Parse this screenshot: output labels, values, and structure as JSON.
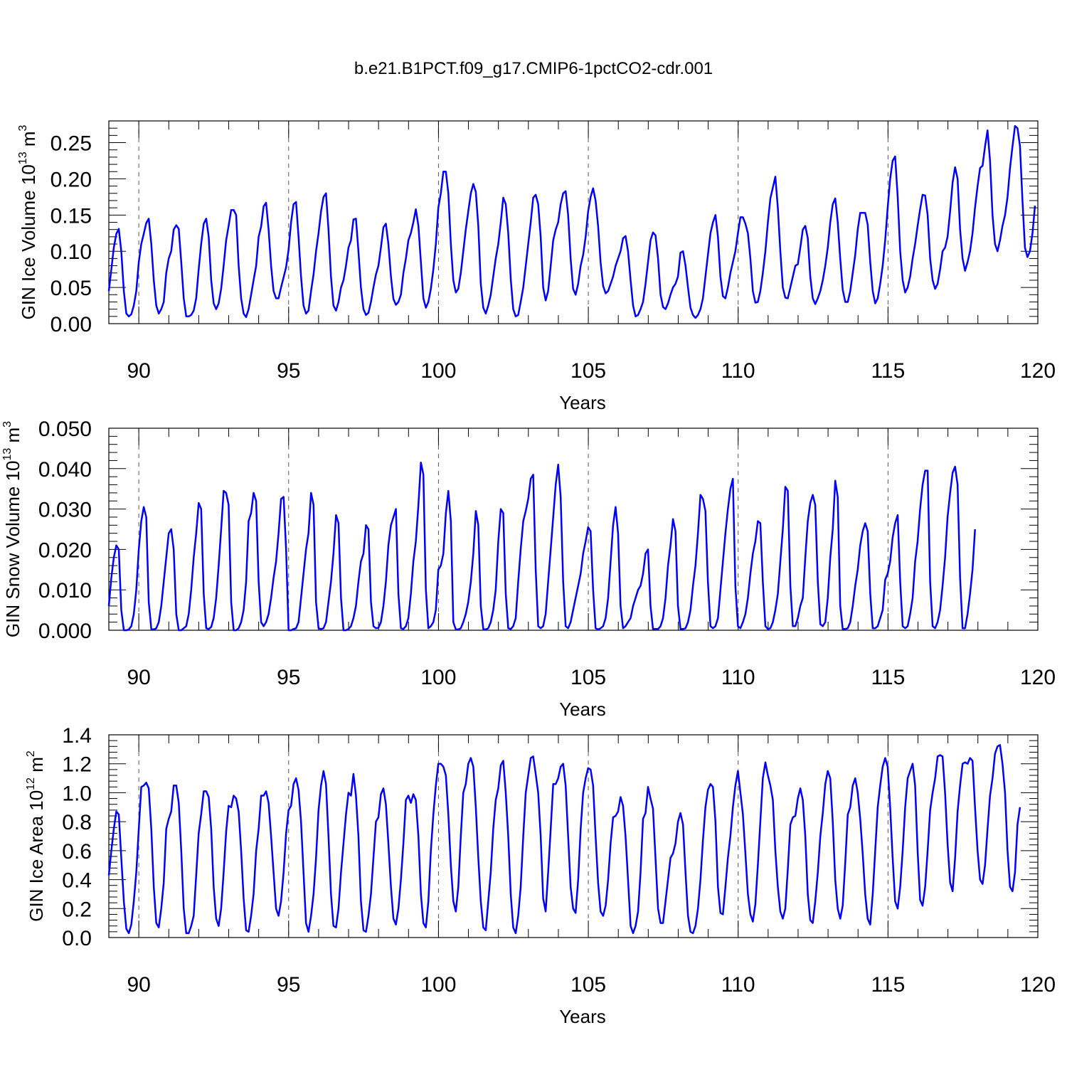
{
  "title": "b.e21.B1PCT.f09_g17.CMIP6-1pctCO2-cdr.001",
  "colors": {
    "line": "#0000ff",
    "axes": "#000000",
    "grid": "#555555"
  },
  "chart_data": [
    {
      "type": "line",
      "ylabel": "GIN Ice Volume 10",
      "ylabel_exp": "13",
      "ylabel_unit": " m",
      "ylabel_unit_exp": "3",
      "xlabel": "Years",
      "xlim": [
        89,
        120
      ],
      "ylim": [
        0,
        0.28
      ],
      "xticks": [
        90,
        95,
        100,
        105,
        110,
        115,
        120
      ],
      "xtick_labels": [
        "90",
        "95",
        "100",
        "105",
        "110",
        "115",
        "120"
      ],
      "yticks": [
        0,
        0.05,
        0.1,
        0.15,
        0.2,
        0.25
      ],
      "ytick_labels": [
        "0.00",
        "0.05",
        "0.10",
        "0.15",
        "0.20",
        "0.25"
      ],
      "grid": "vertical dashed at major x ticks",
      "x_start": 89.0,
      "x_step": 0.0833,
      "values": [
        0.045,
        0.075,
        0.105,
        0.124,
        0.131,
        0.1,
        0.045,
        0.014,
        0.01,
        0.013,
        0.025,
        0.045,
        0.085,
        0.11,
        0.124,
        0.139,
        0.145,
        0.11,
        0.06,
        0.025,
        0.014,
        0.02,
        0.03,
        0.07,
        0.09,
        0.1,
        0.13,
        0.136,
        0.131,
        0.085,
        0.035,
        0.01,
        0.01,
        0.012,
        0.018,
        0.035,
        0.075,
        0.11,
        0.138,
        0.145,
        0.12,
        0.06,
        0.028,
        0.02,
        0.028,
        0.048,
        0.08,
        0.115,
        0.135,
        0.157,
        0.157,
        0.15,
        0.08,
        0.035,
        0.014,
        0.009,
        0.02,
        0.04,
        0.06,
        0.08,
        0.12,
        0.134,
        0.162,
        0.167,
        0.13,
        0.08,
        0.045,
        0.035,
        0.035,
        0.05,
        0.064,
        0.078,
        0.102,
        0.14,
        0.165,
        0.168,
        0.12,
        0.065,
        0.025,
        0.014,
        0.018,
        0.045,
        0.068,
        0.1,
        0.125,
        0.155,
        0.175,
        0.18,
        0.13,
        0.065,
        0.025,
        0.018,
        0.03,
        0.05,
        0.06,
        0.08,
        0.105,
        0.115,
        0.144,
        0.145,
        0.1,
        0.05,
        0.02,
        0.012,
        0.015,
        0.03,
        0.05,
        0.068,
        0.08,
        0.105,
        0.133,
        0.138,
        0.11,
        0.065,
        0.034,
        0.026,
        0.03,
        0.04,
        0.07,
        0.09,
        0.115,
        0.125,
        0.14,
        0.158,
        0.135,
        0.085,
        0.035,
        0.022,
        0.03,
        0.048,
        0.075,
        0.11,
        0.16,
        0.18,
        0.21,
        0.21,
        0.18,
        0.11,
        0.06,
        0.043,
        0.048,
        0.07,
        0.1,
        0.13,
        0.155,
        0.18,
        0.193,
        0.182,
        0.135,
        0.055,
        0.022,
        0.014,
        0.025,
        0.04,
        0.065,
        0.09,
        0.11,
        0.14,
        0.174,
        0.165,
        0.125,
        0.062,
        0.02,
        0.01,
        0.012,
        0.03,
        0.05,
        0.08,
        0.11,
        0.14,
        0.174,
        0.178,
        0.165,
        0.12,
        0.05,
        0.032,
        0.045,
        0.08,
        0.115,
        0.13,
        0.14,
        0.165,
        0.18,
        0.183,
        0.15,
        0.09,
        0.048,
        0.04,
        0.055,
        0.08,
        0.095,
        0.12,
        0.155,
        0.175,
        0.187,
        0.17,
        0.135,
        0.085,
        0.052,
        0.042,
        0.045,
        0.055,
        0.065,
        0.08,
        0.09,
        0.1,
        0.118,
        0.121,
        0.1,
        0.06,
        0.025,
        0.01,
        0.012,
        0.02,
        0.03,
        0.055,
        0.085,
        0.115,
        0.126,
        0.122,
        0.09,
        0.04,
        0.023,
        0.02,
        0.028,
        0.04,
        0.05,
        0.055,
        0.065,
        0.098,
        0.1,
        0.08,
        0.05,
        0.022,
        0.012,
        0.008,
        0.012,
        0.02,
        0.035,
        0.065,
        0.095,
        0.125,
        0.14,
        0.15,
        0.12,
        0.065,
        0.038,
        0.035,
        0.05,
        0.07,
        0.085,
        0.1,
        0.125,
        0.147,
        0.147,
        0.138,
        0.125,
        0.09,
        0.045,
        0.029,
        0.03,
        0.045,
        0.07,
        0.1,
        0.14,
        0.173,
        0.188,
        0.203,
        0.16,
        0.1,
        0.05,
        0.036,
        0.035,
        0.05,
        0.065,
        0.08,
        0.082,
        0.105,
        0.13,
        0.135,
        0.118,
        0.065,
        0.035,
        0.027,
        0.035,
        0.045,
        0.06,
        0.08,
        0.105,
        0.14,
        0.165,
        0.173,
        0.14,
        0.09,
        0.047,
        0.03,
        0.03,
        0.045,
        0.07,
        0.095,
        0.13,
        0.153,
        0.153,
        0.153,
        0.137,
        0.085,
        0.045,
        0.028,
        0.035,
        0.055,
        0.08,
        0.115,
        0.16,
        0.2,
        0.225,
        0.231,
        0.175,
        0.1,
        0.06,
        0.043,
        0.05,
        0.065,
        0.09,
        0.11,
        0.135,
        0.158,
        0.178,
        0.177,
        0.15,
        0.09,
        0.06,
        0.048,
        0.055,
        0.075,
        0.1,
        0.105,
        0.12,
        0.155,
        0.195,
        0.216,
        0.2,
        0.13,
        0.09,
        0.073,
        0.085,
        0.1,
        0.125,
        0.16,
        0.19,
        0.215,
        0.218,
        0.245,
        0.267,
        0.225,
        0.15,
        0.11,
        0.1,
        0.115,
        0.135,
        0.15,
        0.175,
        0.215,
        0.245,
        0.273,
        0.27,
        0.245,
        0.17,
        0.105,
        0.092,
        0.1,
        0.125,
        0.163
      ]
    },
    {
      "type": "line",
      "ylabel": "GIN Snow Volume 10",
      "ylabel_exp": "13",
      "ylabel_unit": " m",
      "ylabel_unit_exp": "3",
      "xlabel": "Years",
      "xlim": [
        89,
        120
      ],
      "ylim": [
        0,
        0.05
      ],
      "xticks": [
        90,
        95,
        100,
        105,
        110,
        115,
        120
      ],
      "xtick_labels": [
        "90",
        "95",
        "100",
        "105",
        "110",
        "115",
        "120"
      ],
      "yticks": [
        0,
        0.01,
        0.02,
        0.03,
        0.04,
        0.05
      ],
      "ytick_labels": [
        "0.000",
        "0.010",
        "0.020",
        "0.030",
        "0.040",
        "0.050"
      ],
      "grid": "vertical dashed at major x ticks",
      "x_start": 89.0,
      "x_step": 0.0833,
      "values": [
        0.006,
        0.013,
        0.018,
        0.021,
        0.02,
        0.005,
        0.0,
        0.0,
        0.0002,
        0.001,
        0.004,
        0.01,
        0.02,
        0.027,
        0.0305,
        0.028,
        0.007,
        0.0003,
        0.0002,
        0.0005,
        0.002,
        0.006,
        0.012,
        0.018,
        0.024,
        0.025,
        0.02,
        0.004,
        0.0,
        0.0,
        0.0005,
        0.001,
        0.004,
        0.01,
        0.018,
        0.024,
        0.0315,
        0.03,
        0.009,
        0.0005,
        0.0003,
        0.0008,
        0.003,
        0.008,
        0.016,
        0.025,
        0.0345,
        0.034,
        0.031,
        0.007,
        0.0,
        0.0,
        0.0005,
        0.002,
        0.005,
        0.012,
        0.027,
        0.029,
        0.034,
        0.032,
        0.012,
        0.002,
        0.001,
        0.002,
        0.004,
        0.008,
        0.013,
        0.017,
        0.024,
        0.0325,
        0.033,
        0.02,
        0.0,
        0.0,
        0.0003,
        0.0005,
        0.002,
        0.008,
        0.014,
        0.02,
        0.024,
        0.034,
        0.031,
        0.007,
        0.0005,
        0.0003,
        0.0005,
        0.002,
        0.007,
        0.012,
        0.019,
        0.0285,
        0.0265,
        0.008,
        0.0,
        0.0,
        0.0003,
        0.001,
        0.003,
        0.006,
        0.012,
        0.017,
        0.019,
        0.026,
        0.025,
        0.007,
        0.001,
        0.0005,
        0.0006,
        0.002,
        0.006,
        0.012,
        0.021,
        0.026,
        0.028,
        0.03,
        0.009,
        0.0005,
        0.0003,
        0.001,
        0.003,
        0.009,
        0.017,
        0.022,
        0.031,
        0.0415,
        0.0385,
        0.01,
        0.0005,
        0.001,
        0.002,
        0.005,
        0.015,
        0.016,
        0.019,
        0.029,
        0.0345,
        0.027,
        0.002,
        0.0002,
        0.0002,
        0.0005,
        0.002,
        0.004,
        0.007,
        0.012,
        0.019,
        0.0295,
        0.026,
        0.006,
        0.0003,
        0.0002,
        0.0005,
        0.002,
        0.005,
        0.01,
        0.022,
        0.03,
        0.029,
        0.009,
        0.0005,
        0.0003,
        0.001,
        0.003,
        0.012,
        0.02,
        0.027,
        0.0295,
        0.0325,
        0.0375,
        0.0385,
        0.015,
        0.001,
        0.0005,
        0.001,
        0.004,
        0.012,
        0.02,
        0.028,
        0.036,
        0.041,
        0.033,
        0.012,
        0.001,
        0.0005,
        0.002,
        0.005,
        0.008,
        0.011,
        0.014,
        0.019,
        0.022,
        0.0255,
        0.0245,
        0.01,
        0.0005,
        0.0002,
        0.0005,
        0.001,
        0.003,
        0.008,
        0.017,
        0.026,
        0.0305,
        0.024,
        0.006,
        0.0005,
        0.001,
        0.002,
        0.003,
        0.006,
        0.008,
        0.01,
        0.011,
        0.014,
        0.019,
        0.02,
        0.006,
        0.0003,
        0.0003,
        0.0003,
        0.001,
        0.003,
        0.008,
        0.016,
        0.021,
        0.0275,
        0.0245,
        0.006,
        0.0003,
        0.0003,
        0.0005,
        0.002,
        0.005,
        0.011,
        0.016,
        0.024,
        0.0335,
        0.0325,
        0.0295,
        0.012,
        0.001,
        0.0005,
        0.001,
        0.003,
        0.01,
        0.017,
        0.024,
        0.03,
        0.035,
        0.0375,
        0.011,
        0.001,
        0.0005,
        0.002,
        0.004,
        0.008,
        0.014,
        0.019,
        0.022,
        0.027,
        0.0265,
        0.012,
        0.001,
        0.0003,
        0.0005,
        0.002,
        0.005,
        0.009,
        0.017,
        0.025,
        0.0355,
        0.0345,
        0.011,
        0.001,
        0.001,
        0.003,
        0.006,
        0.008,
        0.018,
        0.027,
        0.0315,
        0.0335,
        0.031,
        0.012,
        0.0015,
        0.001,
        0.002,
        0.008,
        0.018,
        0.025,
        0.037,
        0.033,
        0.006,
        0.0003,
        0.0003,
        0.0005,
        0.002,
        0.006,
        0.011,
        0.015,
        0.021,
        0.0245,
        0.0265,
        0.0245,
        0.009,
        0.0005,
        0.0005,
        0.001,
        0.003,
        0.005,
        0.0125,
        0.014,
        0.017,
        0.023,
        0.0265,
        0.0285,
        0.012,
        0.001,
        0.0005,
        0.001,
        0.004,
        0.008,
        0.017,
        0.022,
        0.03,
        0.036,
        0.0395,
        0.0395,
        0.012,
        0.001,
        0.0005,
        0.002,
        0.005,
        0.011,
        0.018,
        0.028,
        0.034,
        0.039,
        0.0405,
        0.036,
        0.013,
        0.0005,
        0.0005,
        0.004,
        0.009,
        0.015,
        0.025
      ]
    },
    {
      "type": "line",
      "ylabel": "GIN Ice Area 10",
      "ylabel_exp": "12",
      "ylabel_unit": " m",
      "ylabel_unit_exp": "2",
      "xlabel": "Years",
      "xlim": [
        89,
        120
      ],
      "ylim": [
        0,
        1.4
      ],
      "xticks": [
        90,
        95,
        100,
        105,
        110,
        115,
        120
      ],
      "xtick_labels": [
        "90",
        "95",
        "100",
        "105",
        "110",
        "115",
        "120"
      ],
      "yticks": [
        0,
        0.2,
        0.4,
        0.6,
        0.8,
        1.0,
        1.2,
        1.4
      ],
      "ytick_labels": [
        "0.0",
        "0.2",
        "0.4",
        "0.6",
        "0.8",
        "1.0",
        "1.2",
        "1.4"
      ],
      "grid": "vertical dashed at major x ticks",
      "x_start": 89.0,
      "x_step": 0.0833,
      "values": [
        0.43,
        0.6,
        0.75,
        0.87,
        0.85,
        0.55,
        0.25,
        0.06,
        0.03,
        0.09,
        0.25,
        0.45,
        0.75,
        1.04,
        1.05,
        1.07,
        1.03,
        0.75,
        0.35,
        0.1,
        0.07,
        0.2,
        0.38,
        0.75,
        0.82,
        0.87,
        1.05,
        1.05,
        0.93,
        0.6,
        0.2,
        0.03,
        0.03,
        0.08,
        0.15,
        0.43,
        0.72,
        0.85,
        1.01,
        1.01,
        0.97,
        0.75,
        0.35,
        0.13,
        0.08,
        0.2,
        0.45,
        0.73,
        0.91,
        0.9,
        0.98,
        0.96,
        0.87,
        0.6,
        0.27,
        0.05,
        0.04,
        0.15,
        0.3,
        0.6,
        0.75,
        0.98,
        0.98,
        1.01,
        0.93,
        0.7,
        0.45,
        0.2,
        0.15,
        0.25,
        0.45,
        0.72,
        0.88,
        0.91,
        1.06,
        1.1,
        1.02,
        0.8,
        0.45,
        0.1,
        0.04,
        0.15,
        0.3,
        0.55,
        0.88,
        1.05,
        1.15,
        1.06,
        0.7,
        0.3,
        0.08,
        0.07,
        0.2,
        0.45,
        0.65,
        0.85,
        1.0,
        0.98,
        1.13,
        0.98,
        0.7,
        0.25,
        0.05,
        0.04,
        0.15,
        0.3,
        0.55,
        0.8,
        0.83,
        0.99,
        1.03,
        0.92,
        0.65,
        0.35,
        0.13,
        0.09,
        0.2,
        0.4,
        0.65,
        0.95,
        0.98,
        0.93,
        0.99,
        0.95,
        0.7,
        0.3,
        0.1,
        0.07,
        0.25,
        0.6,
        0.85,
        1.05,
        1.2,
        1.2,
        1.18,
        1.12,
        0.85,
        0.5,
        0.25,
        0.18,
        0.35,
        0.7,
        1.0,
        1.06,
        1.2,
        1.24,
        1.18,
        0.9,
        0.55,
        0.25,
        0.07,
        0.05,
        0.25,
        0.45,
        0.75,
        0.95,
        1.03,
        1.19,
        1.22,
        1.0,
        0.7,
        0.3,
        0.07,
        0.03,
        0.15,
        0.35,
        0.7,
        1.0,
        1.12,
        1.24,
        1.25,
        1.13,
        1.0,
        0.7,
        0.27,
        0.18,
        0.45,
        0.75,
        1.06,
        1.06,
        1.1,
        1.18,
        1.2,
        1.05,
        0.7,
        0.35,
        0.2,
        0.17,
        0.4,
        0.75,
        1.0,
        1.1,
        1.17,
        1.16,
        1.05,
        0.7,
        0.38,
        0.18,
        0.15,
        0.22,
        0.4,
        0.65,
        0.83,
        0.84,
        0.87,
        0.97,
        0.91,
        0.7,
        0.4,
        0.08,
        0.03,
        0.08,
        0.18,
        0.45,
        0.82,
        0.86,
        1.04,
        0.96,
        0.89,
        0.55,
        0.2,
        0.1,
        0.1,
        0.25,
        0.4,
        0.55,
        0.58,
        0.65,
        0.8,
        0.86,
        0.78,
        0.45,
        0.15,
        0.04,
        0.03,
        0.08,
        0.2,
        0.4,
        0.67,
        0.9,
        1.02,
        1.06,
        1.04,
        0.8,
        0.35,
        0.17,
        0.16,
        0.35,
        0.55,
        0.7,
        0.9,
        1.05,
        1.15,
        1.0,
        0.85,
        0.58,
        0.3,
        0.16,
        0.11,
        0.23,
        0.5,
        0.8,
        1.1,
        1.21,
        1.12,
        1.05,
        0.95,
        0.6,
        0.35,
        0.18,
        0.13,
        0.2,
        0.47,
        0.78,
        0.83,
        0.84,
        0.96,
        1.03,
        0.95,
        0.7,
        0.3,
        0.12,
        0.1,
        0.25,
        0.45,
        0.7,
        0.86,
        1.06,
        1.15,
        1.1,
        0.8,
        0.4,
        0.2,
        0.13,
        0.22,
        0.52,
        0.85,
        0.9,
        1.05,
        1.1,
        1.0,
        0.82,
        0.58,
        0.3,
        0.13,
        0.09,
        0.3,
        0.6,
        0.9,
        1.05,
        1.18,
        1.24,
        1.18,
        0.9,
        0.55,
        0.25,
        0.2,
        0.35,
        0.6,
        0.9,
        1.1,
        1.15,
        1.2,
        1.05,
        0.6,
        0.26,
        0.22,
        0.35,
        0.6,
        0.88,
        1.0,
        1.1,
        1.25,
        1.26,
        1.25,
        1.0,
        0.65,
        0.38,
        0.32,
        0.55,
        0.87,
        1.05,
        1.2,
        1.21,
        1.2,
        1.24,
        1.22,
        0.9,
        0.6,
        0.4,
        0.37,
        0.5,
        0.75,
        0.98,
        1.1,
        1.27,
        1.32,
        1.33,
        1.2,
        1.0,
        0.6,
        0.35,
        0.32,
        0.45,
        0.78,
        0.9
      ]
    }
  ]
}
